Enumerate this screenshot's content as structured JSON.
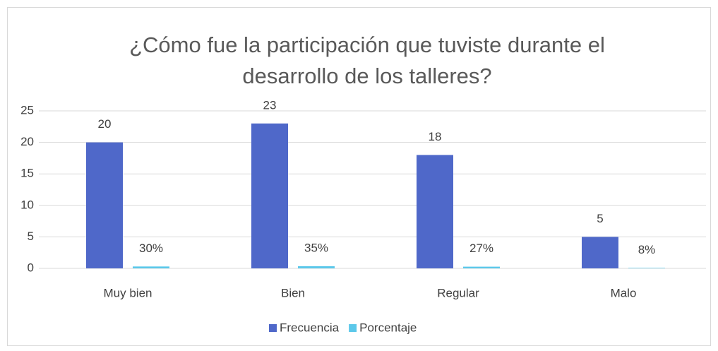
{
  "chart_data": {
    "type": "bar",
    "title": "¿Cómo fue la participación que tuviste durante el desarrollo de los talleres?",
    "categories": [
      "Muy bien",
      "Bien",
      "Regular",
      "Malo"
    ],
    "series": [
      {
        "name": "Frecuencia",
        "color": "#4f68c9",
        "values": [
          20,
          23,
          18,
          5
        ]
      },
      {
        "name": "Porcentaje",
        "color": "#5cc8ea",
        "values": [
          0.3,
          0.35,
          0.27,
          0.08
        ],
        "value_labels": [
          "30%",
          "35%",
          "27%",
          "8%"
        ]
      }
    ],
    "ylim": [
      0,
      25
    ],
    "yticks": [
      0,
      5,
      10,
      15,
      20,
      25
    ],
    "grid": true,
    "legend": "bottom"
  }
}
